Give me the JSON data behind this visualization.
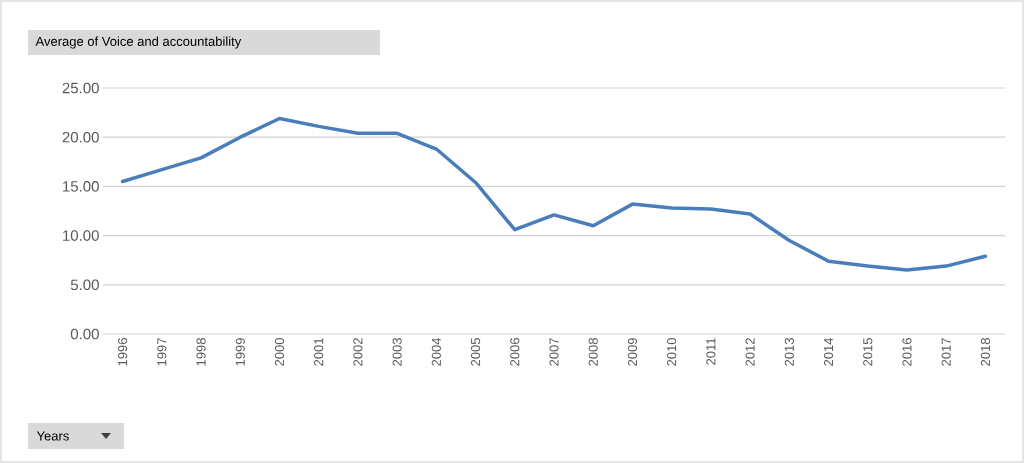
{
  "chart_data": {
    "type": "line",
    "title": "Average of Voice and accountability",
    "annotations": [
      "Years"
    ],
    "categories": [
      "1996",
      "1997",
      "1998",
      "1999",
      "2000",
      "2001",
      "2002",
      "2003",
      "2004",
      "2005",
      "2006",
      "2007",
      "2008",
      "2009",
      "2010",
      "2011",
      "2012",
      "2013",
      "2014",
      "2015",
      "2016",
      "2017",
      "2018"
    ],
    "series": [
      {
        "color": "#4a7ebb",
        "values": [
          15.5,
          16.7,
          17.9,
          20.0,
          21.9,
          21.1,
          20.4,
          20.4,
          18.8,
          15.4,
          10.6,
          12.1,
          11.0,
          13.2,
          12.8,
          12.7,
          12.2,
          9.5,
          7.4,
          6.9,
          6.5,
          6.9,
          7.9
        ]
      }
    ],
    "ylim": [
      0,
      25
    ],
    "yticks": [
      {
        "value": 0,
        "label": "0.00"
      },
      {
        "value": 5,
        "label": "5.00"
      },
      {
        "value": 10,
        "label": "10.00"
      },
      {
        "value": 15,
        "label": "15.00"
      },
      {
        "value": 20,
        "label": "20.00"
      },
      {
        "value": 25,
        "label": "25.00"
      }
    ],
    "grid": "y",
    "marker": "none",
    "line_style": "solid"
  }
}
